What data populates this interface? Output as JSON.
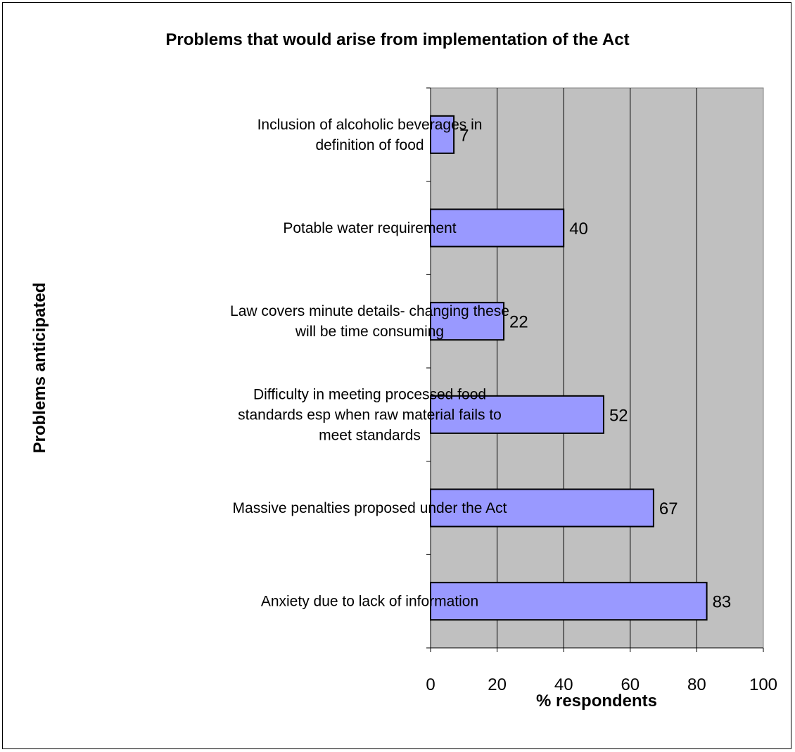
{
  "chart_data": {
    "type": "bar",
    "orientation": "horizontal",
    "title": "Problems that would arise from implementation of the Act",
    "xlabel": "% respondents",
    "ylabel": "Problems anticipated",
    "xlim": [
      0,
      100
    ],
    "x_ticks": [
      "0",
      "20",
      "40",
      "60",
      "80",
      "100"
    ],
    "grid": true,
    "categories": [
      [
        "Inclusion of alcoholic beverages in",
        "definition of food"
      ],
      [
        "Potable water requirement"
      ],
      [
        "Law covers minute details- changing these",
        "will be time consuming"
      ],
      [
        "Difficulty in meeting processed food",
        "standards esp when raw material fails to",
        "meet standards"
      ],
      [
        "Massive penalties proposed under the Act"
      ],
      [
        "Anxiety due to lack of information"
      ]
    ],
    "values": [
      7,
      40,
      22,
      52,
      67,
      83
    ],
    "bar_color": "#9999ff",
    "plot_background": "#c0c0c0"
  }
}
